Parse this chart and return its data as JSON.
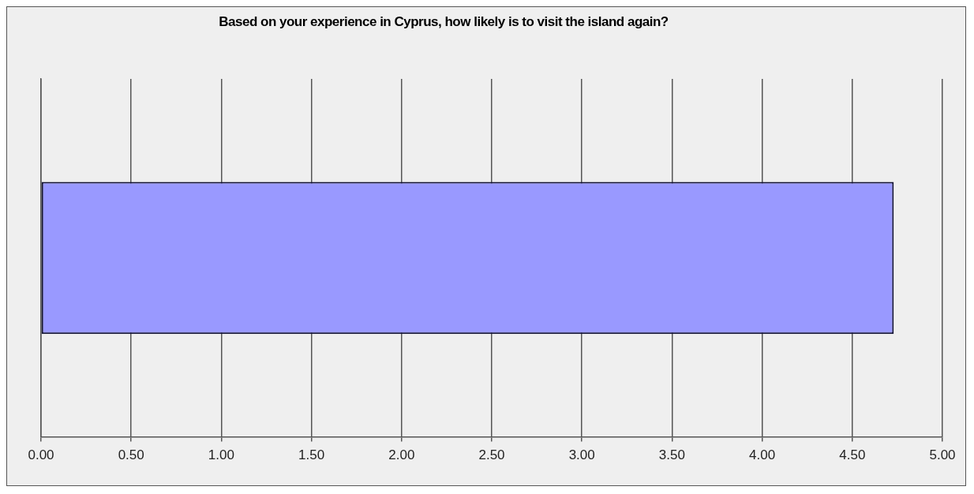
{
  "chart_data": {
    "type": "bar",
    "orientation": "horizontal",
    "title": "Based on your experience in Cyprus, how likely is to visit the island again?",
    "categories": [
      null
    ],
    "values": [
      4.73
    ],
    "color": "#9999ff",
    "xlim": [
      0,
      5
    ],
    "xticks": [
      {
        "value": 0,
        "label": "0.00"
      },
      {
        "value": 0.5,
        "label": "0.50"
      },
      {
        "value": 1,
        "label": "1.00"
      },
      {
        "value": 1.5,
        "label": "1.50"
      },
      {
        "value": 2,
        "label": "2.00"
      },
      {
        "value": 2.5,
        "label": "2.50"
      },
      {
        "value": 3,
        "label": "3.00"
      },
      {
        "value": 3.5,
        "label": "3.50"
      },
      {
        "value": 4,
        "label": "4.00"
      },
      {
        "value": 4.5,
        "label": "4.50"
      },
      {
        "value": 5,
        "label": "5.00"
      }
    ],
    "grid": "x"
  }
}
